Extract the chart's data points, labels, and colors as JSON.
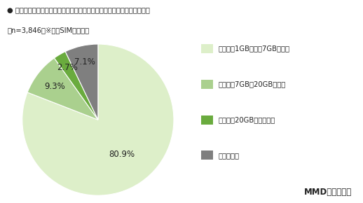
{
  "title_line1": "● 現在契約している通信会社のスマートフォンの月間のデータ容量プラン",
  "title_line2": "（n=3,846）※格安SIMユーザー",
  "values": [
    80.9,
    9.3,
    2.7,
    7.1
  ],
  "labels_pct": [
    "80.9%",
    "9.3%",
    "2.7%",
    "7.1%"
  ],
  "colors": [
    "#ddefc9",
    "#aad08e",
    "#6aab3e",
    "#7f7f7f"
  ],
  "legend_labels": [
    "小容量（1GB以下～7GB未満）",
    "中容量（7GB～20GB未満）",
    "大容量（20GB～無制限）",
    "分からない"
  ],
  "startangle": 90,
  "credit": "MMD研究所調べ",
  "bg_color": "#ffffff",
  "pct_offsets": [
    0.55,
    0.72,
    0.8,
    0.78
  ]
}
